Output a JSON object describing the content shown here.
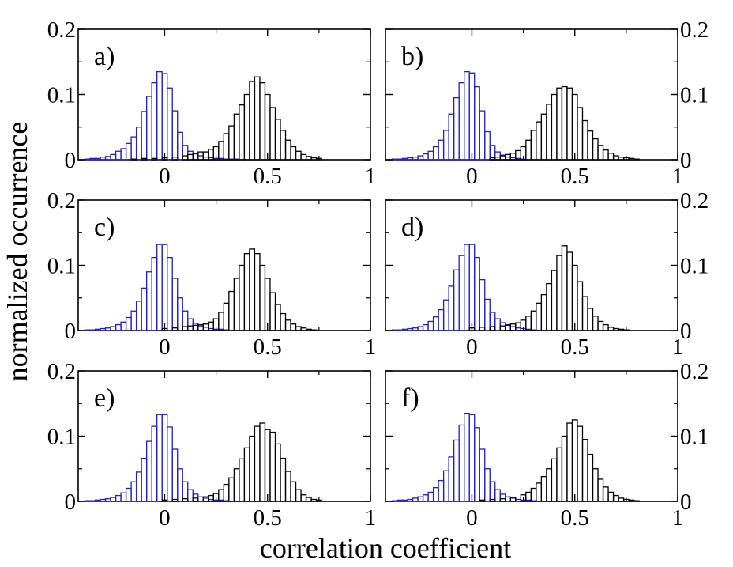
{
  "chart_data": {
    "type": "bar",
    "title": "",
    "xlabel": "correlation coefficient",
    "ylabel": "normalized occurrence",
    "xlim": [
      -0.42,
      1.0
    ],
    "ylim": [
      0,
      0.2
    ],
    "xticks": [
      0,
      0.5,
      1
    ],
    "xtick_labels": [
      "0",
      "0.5",
      "1"
    ],
    "yticks": [
      0,
      0.1,
      0.2
    ],
    "ytick_labels": [
      "0",
      "0.1",
      "0.2"
    ],
    "bin_width": 0.025,
    "series_colors": {
      "blue": "#1f1fd0",
      "black": "#000000"
    },
    "panels": [
      {
        "label": "a)",
        "series": [
          {
            "name": "blue",
            "center": 0.0,
            "x": [
              -0.375,
              -0.35,
              -0.325,
              -0.3,
              -0.275,
              -0.25,
              -0.225,
              -0.2,
              -0.175,
              -0.15,
              -0.125,
              -0.1,
              -0.075,
              -0.05,
              -0.025,
              0.0,
              0.025,
              0.05,
              0.075,
              0.1,
              0.125,
              0.15,
              0.175,
              0.2,
              0.225,
              0.25,
              0.275,
              0.3,
              0.325,
              0.35
            ],
            "values": [
              0.001,
              0.002,
              0.002,
              0.004,
              0.005,
              0.008,
              0.013,
              0.017,
              0.025,
              0.035,
              0.05,
              0.074,
              0.097,
              0.118,
              0.135,
              0.132,
              0.11,
              0.075,
              0.042,
              0.022,
              0.013,
              0.009,
              0.006,
              0.004,
              0.003,
              0.002,
              0.002,
              0.001,
              0.001,
              0.001
            ]
          },
          {
            "name": "black",
            "center": 0.45,
            "x": [
              -0.15,
              -0.1,
              -0.05,
              0.0,
              0.05,
              0.1,
              0.125,
              0.15,
              0.175,
              0.2,
              0.225,
              0.25,
              0.275,
              0.3,
              0.325,
              0.35,
              0.375,
              0.4,
              0.425,
              0.45,
              0.475,
              0.5,
              0.525,
              0.55,
              0.575,
              0.6,
              0.625,
              0.65,
              0.675,
              0.7,
              0.725,
              0.75
            ],
            "values": [
              0.001,
              0.002,
              0.002,
              0.003,
              0.004,
              0.006,
              0.008,
              0.01,
              0.012,
              0.012,
              0.016,
              0.02,
              0.028,
              0.04,
              0.052,
              0.07,
              0.084,
              0.1,
              0.12,
              0.127,
              0.118,
              0.1,
              0.08,
              0.062,
              0.045,
              0.03,
              0.02,
              0.013,
              0.008,
              0.005,
              0.003,
              0.002
            ]
          }
        ]
      },
      {
        "label": "b)",
        "series": [
          {
            "name": "blue",
            "center": 0.0,
            "x": [
              -0.375,
              -0.35,
              -0.325,
              -0.3,
              -0.275,
              -0.25,
              -0.225,
              -0.2,
              -0.175,
              -0.15,
              -0.125,
              -0.1,
              -0.075,
              -0.05,
              -0.025,
              0.0,
              0.025,
              0.05,
              0.075,
              0.1,
              0.125,
              0.15,
              0.175,
              0.2,
              0.225,
              0.25
            ],
            "values": [
              0.001,
              0.001,
              0.002,
              0.003,
              0.004,
              0.006,
              0.009,
              0.013,
              0.02,
              0.03,
              0.045,
              0.07,
              0.095,
              0.118,
              0.135,
              0.133,
              0.112,
              0.075,
              0.043,
              0.022,
              0.012,
              0.007,
              0.004,
              0.003,
              0.002,
              0.001
            ]
          },
          {
            "name": "black",
            "center": 0.42,
            "x": [
              0.1,
              0.125,
              0.15,
              0.175,
              0.2,
              0.225,
              0.25,
              0.275,
              0.3,
              0.325,
              0.35,
              0.375,
              0.4,
              0.425,
              0.45,
              0.475,
              0.5,
              0.525,
              0.55,
              0.575,
              0.6,
              0.625,
              0.65,
              0.675,
              0.7,
              0.725,
              0.75,
              0.775,
              0.8
            ],
            "values": [
              0.003,
              0.004,
              0.006,
              0.008,
              0.01,
              0.014,
              0.02,
              0.03,
              0.045,
              0.058,
              0.07,
              0.085,
              0.1,
              0.11,
              0.112,
              0.11,
              0.1,
              0.08,
              0.06,
              0.044,
              0.032,
              0.022,
              0.015,
              0.01,
              0.006,
              0.004,
              0.003,
              0.002,
              0.001
            ]
          }
        ]
      },
      {
        "label": "c)",
        "series": [
          {
            "name": "blue",
            "center": 0.0,
            "x": [
              -0.375,
              -0.35,
              -0.325,
              -0.3,
              -0.275,
              -0.25,
              -0.225,
              -0.2,
              -0.175,
              -0.15,
              -0.125,
              -0.1,
              -0.075,
              -0.05,
              -0.025,
              0.0,
              0.025,
              0.05,
              0.075,
              0.1,
              0.125,
              0.15,
              0.175,
              0.2,
              0.225,
              0.25,
              0.275,
              0.3
            ],
            "values": [
              0.001,
              0.001,
              0.002,
              0.003,
              0.004,
              0.006,
              0.009,
              0.013,
              0.02,
              0.03,
              0.045,
              0.065,
              0.09,
              0.112,
              0.132,
              0.132,
              0.112,
              0.08,
              0.05,
              0.03,
              0.018,
              0.011,
              0.007,
              0.005,
              0.003,
              0.002,
              0.002,
              0.001
            ]
          },
          {
            "name": "black",
            "center": 0.42,
            "x": [
              0.0,
              0.05,
              0.1,
              0.125,
              0.15,
              0.175,
              0.2,
              0.225,
              0.25,
              0.275,
              0.3,
              0.325,
              0.35,
              0.375,
              0.4,
              0.425,
              0.45,
              0.475,
              0.5,
              0.525,
              0.55,
              0.575,
              0.6,
              0.625,
              0.65,
              0.675,
              0.7,
              0.725
            ],
            "values": [
              0.003,
              0.004,
              0.006,
              0.007,
              0.008,
              0.009,
              0.01,
              0.013,
              0.018,
              0.028,
              0.042,
              0.06,
              0.08,
              0.1,
              0.118,
              0.125,
              0.118,
              0.1,
              0.08,
              0.058,
              0.04,
              0.026,
              0.016,
              0.01,
              0.006,
              0.004,
              0.002,
              0.001
            ]
          }
        ]
      },
      {
        "label": "d)",
        "series": [
          {
            "name": "blue",
            "center": 0.0,
            "x": [
              -0.375,
              -0.35,
              -0.325,
              -0.3,
              -0.275,
              -0.25,
              -0.225,
              -0.2,
              -0.175,
              -0.15,
              -0.125,
              -0.1,
              -0.075,
              -0.05,
              -0.025,
              0.0,
              0.025,
              0.05,
              0.075,
              0.1,
              0.125,
              0.15,
              0.175,
              0.2,
              0.225,
              0.25,
              0.275,
              0.3
            ],
            "values": [
              0.001,
              0.001,
              0.002,
              0.003,
              0.004,
              0.006,
              0.009,
              0.014,
              0.021,
              0.032,
              0.047,
              0.068,
              0.093,
              0.115,
              0.132,
              0.132,
              0.112,
              0.078,
              0.048,
              0.028,
              0.018,
              0.012,
              0.009,
              0.006,
              0.004,
              0.003,
              0.002,
              0.001
            ]
          },
          {
            "name": "black",
            "center": 0.45,
            "x": [
              0.0,
              0.05,
              0.1,
              0.15,
              0.175,
              0.2,
              0.225,
              0.25,
              0.275,
              0.3,
              0.325,
              0.35,
              0.375,
              0.4,
              0.425,
              0.45,
              0.475,
              0.5,
              0.525,
              0.55,
              0.575,
              0.6,
              0.625,
              0.65,
              0.675,
              0.7,
              0.725,
              0.75
            ],
            "values": [
              0.004,
              0.005,
              0.006,
              0.007,
              0.008,
              0.01,
              0.012,
              0.016,
              0.022,
              0.03,
              0.042,
              0.055,
              0.072,
              0.092,
              0.115,
              0.13,
              0.12,
              0.1,
              0.075,
              0.052,
              0.034,
              0.022,
              0.014,
              0.009,
              0.005,
              0.003,
              0.002,
              0.001
            ]
          }
        ]
      },
      {
        "label": "e)",
        "series": [
          {
            "name": "blue",
            "center": 0.0,
            "x": [
              -0.375,
              -0.35,
              -0.325,
              -0.3,
              -0.275,
              -0.25,
              -0.225,
              -0.2,
              -0.175,
              -0.15,
              -0.125,
              -0.1,
              -0.075,
              -0.05,
              -0.025,
              0.0,
              0.025,
              0.05,
              0.075,
              0.1,
              0.125,
              0.15,
              0.175,
              0.2,
              0.225,
              0.25,
              0.275,
              0.3
            ],
            "values": [
              0.001,
              0.001,
              0.002,
              0.003,
              0.004,
              0.006,
              0.009,
              0.013,
              0.02,
              0.03,
              0.045,
              0.066,
              0.092,
              0.115,
              0.133,
              0.133,
              0.114,
              0.08,
              0.05,
              0.03,
              0.018,
              0.011,
              0.007,
              0.005,
              0.003,
              0.002,
              0.002,
              0.001
            ]
          },
          {
            "name": "black",
            "center": 0.47,
            "x": [
              0.0,
              0.05,
              0.1,
              0.15,
              0.2,
              0.225,
              0.25,
              0.275,
              0.3,
              0.325,
              0.35,
              0.375,
              0.4,
              0.425,
              0.45,
              0.475,
              0.5,
              0.525,
              0.55,
              0.575,
              0.6,
              0.625,
              0.65,
              0.675,
              0.7,
              0.725,
              0.75
            ],
            "values": [
              0.002,
              0.003,
              0.004,
              0.005,
              0.007,
              0.009,
              0.012,
              0.018,
              0.026,
              0.036,
              0.05,
              0.065,
              0.082,
              0.1,
              0.115,
              0.12,
              0.11,
              0.106,
              0.088,
              0.066,
              0.046,
              0.03,
              0.018,
              0.01,
              0.006,
              0.003,
              0.002
            ]
          }
        ]
      },
      {
        "label": "f)",
        "series": [
          {
            "name": "blue",
            "center": 0.0,
            "x": [
              -0.375,
              -0.35,
              -0.325,
              -0.3,
              -0.275,
              -0.25,
              -0.225,
              -0.2,
              -0.175,
              -0.15,
              -0.125,
              -0.1,
              -0.075,
              -0.05,
              -0.025,
              0.0,
              0.025,
              0.05,
              0.075,
              0.1,
              0.125,
              0.15,
              0.175,
              0.2,
              0.225,
              0.25,
              0.275,
              0.3
            ],
            "values": [
              0.001,
              0.002,
              0.002,
              0.003,
              0.005,
              0.007,
              0.01,
              0.014,
              0.021,
              0.032,
              0.047,
              0.068,
              0.094,
              0.117,
              0.135,
              0.133,
              0.113,
              0.08,
              0.05,
              0.03,
              0.018,
              0.011,
              0.007,
              0.005,
              0.003,
              0.002,
              0.002,
              0.001
            ]
          },
          {
            "name": "black",
            "center": 0.5,
            "x": [
              0.05,
              0.1,
              0.15,
              0.2,
              0.25,
              0.275,
              0.3,
              0.325,
              0.35,
              0.375,
              0.4,
              0.425,
              0.45,
              0.475,
              0.5,
              0.525,
              0.55,
              0.575,
              0.6,
              0.625,
              0.65,
              0.675,
              0.7,
              0.725,
              0.75,
              0.775,
              0.8
            ],
            "values": [
              0.002,
              0.003,
              0.004,
              0.006,
              0.01,
              0.014,
              0.02,
              0.028,
              0.038,
              0.05,
              0.065,
              0.082,
              0.1,
              0.12,
              0.125,
              0.115,
              0.095,
              0.072,
              0.05,
              0.034,
              0.022,
              0.014,
              0.009,
              0.005,
              0.003,
              0.002,
              0.001
            ]
          }
        ]
      }
    ]
  }
}
